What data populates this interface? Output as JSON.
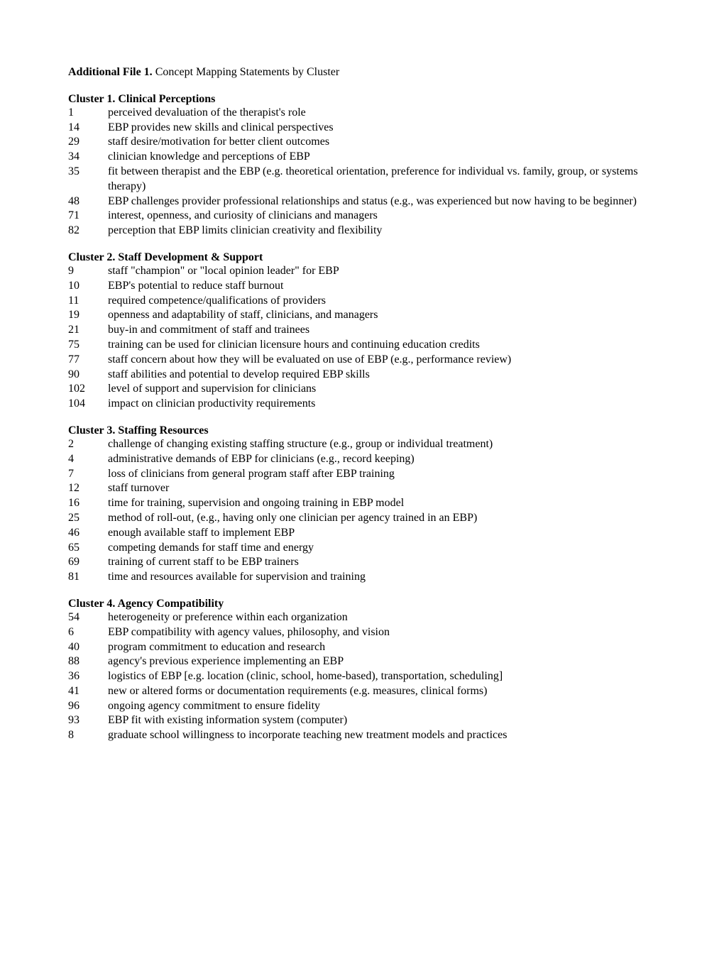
{
  "file_title_bold": "Additional File 1.",
  "file_title_rest": " Concept Mapping Statements by Cluster",
  "clusters": [
    {
      "title": "Cluster 1.  Clinical Perceptions",
      "items": [
        {
          "n": "1",
          "t": "perceived devaluation of the therapist's role"
        },
        {
          "n": "14",
          "t": "EBP provides new skills and clinical perspectives"
        },
        {
          "n": "29",
          "t": "staff desire/motivation for better client outcomes"
        },
        {
          "n": "34",
          "t": "clinician knowledge and perceptions of EBP"
        },
        {
          "n": "35",
          "t": "fit between therapist and the EBP (e.g. theoretical orientation, preference for individual vs. family, group, or systems therapy)"
        },
        {
          "n": "48",
          "t": "EBP challenges provider professional relationships and status (e.g., was experienced but now having to be beginner)"
        },
        {
          "n": "71",
          "t": "interest, openness, and curiosity of clinicians and managers"
        },
        {
          "n": "82",
          "t": "perception that EBP limits clinician creativity and flexibility"
        }
      ]
    },
    {
      "title": "Cluster 2.  Staff Development & Support",
      "items": [
        {
          "n": "9",
          "t": "staff \"champion\" or \"local opinion leader\" for EBP"
        },
        {
          "n": "10",
          "t": "EBP's potential to reduce staff burnout"
        },
        {
          "n": "11",
          "t": "required competence/qualifications of providers"
        },
        {
          "n": "19",
          "t": "openness and adaptability of staff, clinicians, and managers"
        },
        {
          "n": "21",
          "t": "buy-in and commitment of staff and trainees"
        },
        {
          "n": "75",
          "t": "training can be used for clinician licensure hours and continuing education credits"
        },
        {
          "n": "77",
          "t": "staff concern about how they will be evaluated on use of EBP (e.g., performance review)"
        },
        {
          "n": "90",
          "t": "staff abilities and potential to develop required EBP skills"
        },
        {
          "n": "102",
          "t": "level of support and supervision for clinicians"
        },
        {
          "n": "104",
          "t": "impact on clinician productivity requirements"
        }
      ]
    },
    {
      "title": "Cluster 3.  Staffing Resources",
      "items": [
        {
          "n": "2",
          "t": "challenge of changing existing staffing structure (e.g., group or individual treatment)"
        },
        {
          "n": "4",
          "t": "administrative demands of EBP for clinicians (e.g., record keeping)"
        },
        {
          "n": "7",
          "t": "loss of clinicians from general program staff after EBP training"
        },
        {
          "n": "12",
          "t": "staff turnover"
        },
        {
          "n": "16",
          "t": "time for training, supervision and ongoing training in EBP model"
        },
        {
          "n": "25",
          "t": "method of roll-out, (e.g., having only one clinician per agency trained in an EBP)"
        },
        {
          "n": "46",
          "t": "enough available staff to implement EBP"
        },
        {
          "n": "65",
          "t": "competing demands for staff time and energy"
        },
        {
          "n": "69",
          "t": "training of current staff to be EBP trainers"
        },
        {
          "n": "81",
          "t": "time and resources available for supervision and training"
        }
      ]
    },
    {
      "title": "Cluster 4.  Agency Compatibility",
      "items": [
        {
          "n": "54",
          "t": "heterogeneity or preference within each organization"
        },
        {
          "n": "6",
          "t": "EBP compatibility with agency values, philosophy, and vision"
        },
        {
          "n": "40",
          "t": "program commitment to education and research"
        },
        {
          "n": "88",
          "t": "agency's previous experience implementing an EBP"
        },
        {
          "n": "36",
          "t": "logistics of EBP [e.g. location (clinic, school, home-based), transportation, scheduling]"
        },
        {
          "n": "41",
          "t": "new or altered forms or documentation requirements (e.g. measures, clinical forms)"
        },
        {
          "n": "96",
          "t": "ongoing agency commitment to ensure fidelity"
        },
        {
          "n": "93",
          "t": "EBP fit with existing information system (computer)"
        },
        {
          "n": "8",
          "t": "graduate school willingness to incorporate teaching new treatment models and practices"
        }
      ]
    }
  ]
}
